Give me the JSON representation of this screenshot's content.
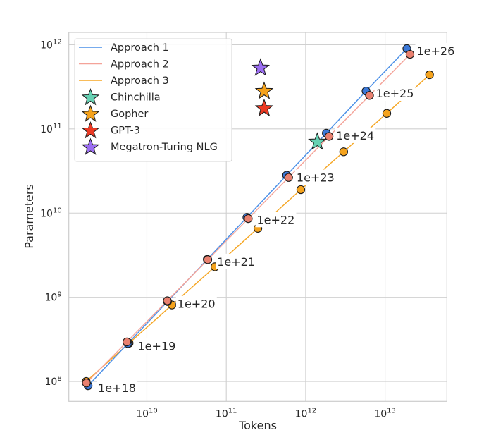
{
  "chart_data": {
    "type": "line",
    "title": "",
    "xlabel": "Tokens",
    "ylabel": "Parameters",
    "xscale": "log",
    "yscale": "log",
    "xlim": [
      1040000000.0,
      60000000000000.0
    ],
    "ylim": [
      58000000.0,
      1400000000000.0
    ],
    "grid": true,
    "legend_position": "top-left",
    "xticks": [
      {
        "value": 10000000000.0,
        "base": "10",
        "exp": "10"
      },
      {
        "value": 100000000000.0,
        "base": "10",
        "exp": "11"
      },
      {
        "value": 1000000000000.0,
        "base": "10",
        "exp": "12"
      },
      {
        "value": 10000000000000.0,
        "base": "10",
        "exp": "13"
      }
    ],
    "yticks": [
      {
        "value": 100000000.0,
        "base": "10",
        "exp": "8"
      },
      {
        "value": 1000000000.0,
        "base": "10",
        "exp": "9"
      },
      {
        "value": 10000000000.0,
        "base": "10",
        "exp": "10"
      },
      {
        "value": 100000000000.0,
        "base": "10",
        "exp": "11"
      },
      {
        "value": 1000000000000.0,
        "base": "10",
        "exp": "12"
      }
    ],
    "flops_labels": [
      "1e+18",
      "1e+19",
      "1e+20",
      "1e+21",
      "1e+22",
      "1e+23",
      "1e+24",
      "1e+25",
      "1e+26"
    ],
    "series": [
      {
        "name": "Approach 1",
        "line_color": "#4a8fe7",
        "marker_color": "#3b78d8",
        "tokens": [
          1820000000.0,
          5760000000.0,
          18200000000.0,
          57600000000.0,
          182000000000.0,
          576000000000.0,
          1820000000000.0,
          5760000000000.0,
          18800000000000.0
        ],
        "params": [
          89000000.0,
          282000000.0,
          890000000.0,
          2820000000.0,
          8900000000.0,
          28200000000.0,
          89000000000.0,
          282000000000.0,
          900000000000.0
        ]
      },
      {
        "name": "Approach 2",
        "line_color": "#f4a399",
        "marker_color": "#e9806f",
        "tokens": [
          1730000000.0,
          5600000000.0,
          18100000000.0,
          58500000000.0,
          189000000000.0,
          610000000000.0,
          1970000000000.0,
          6370000000000.0,
          20600000000000.0
        ],
        "params": [
          96000000.0,
          295000000.0,
          910000000.0,
          2800000000.0,
          8600000000.0,
          26500000000.0,
          81500000000.0,
          250000000000.0,
          770000000000.0
        ]
      },
      {
        "name": "Approach 3",
        "line_color": "#f5a623",
        "marker_color": "#f5a31d",
        "tokens": [
          1720000000.0,
          5970000000.0,
          20700000000.0,
          72000000000.0,
          250000000000.0,
          868000000000.0,
          3010000000000.0,
          10500000000000.0,
          36300000000000.0
        ],
        "params": [
          100000000.0,
          285000000.0,
          810000000.0,
          2300000000.0,
          6600000000.0,
          19000000000.0,
          53500000000.0,
          153000000000.0,
          440000000000.0
        ]
      }
    ],
    "models": [
      {
        "name": "Chinchilla",
        "tokens": 1400000000000.0,
        "params": 70000000000.0,
        "color": "#66d1b3"
      },
      {
        "name": "Gopher",
        "tokens": 300000000000.0,
        "params": 280000000000.0,
        "color": "#f5a21b"
      },
      {
        "name": "GPT-3",
        "tokens": 300000000000.0,
        "params": 175000000000.0,
        "color": "#ec3a24"
      },
      {
        "name": "Megatron-Turing NLG",
        "tokens": 270000000000.0,
        "params": 530000000000.0,
        "color": "#9b6ef2"
      }
    ]
  }
}
